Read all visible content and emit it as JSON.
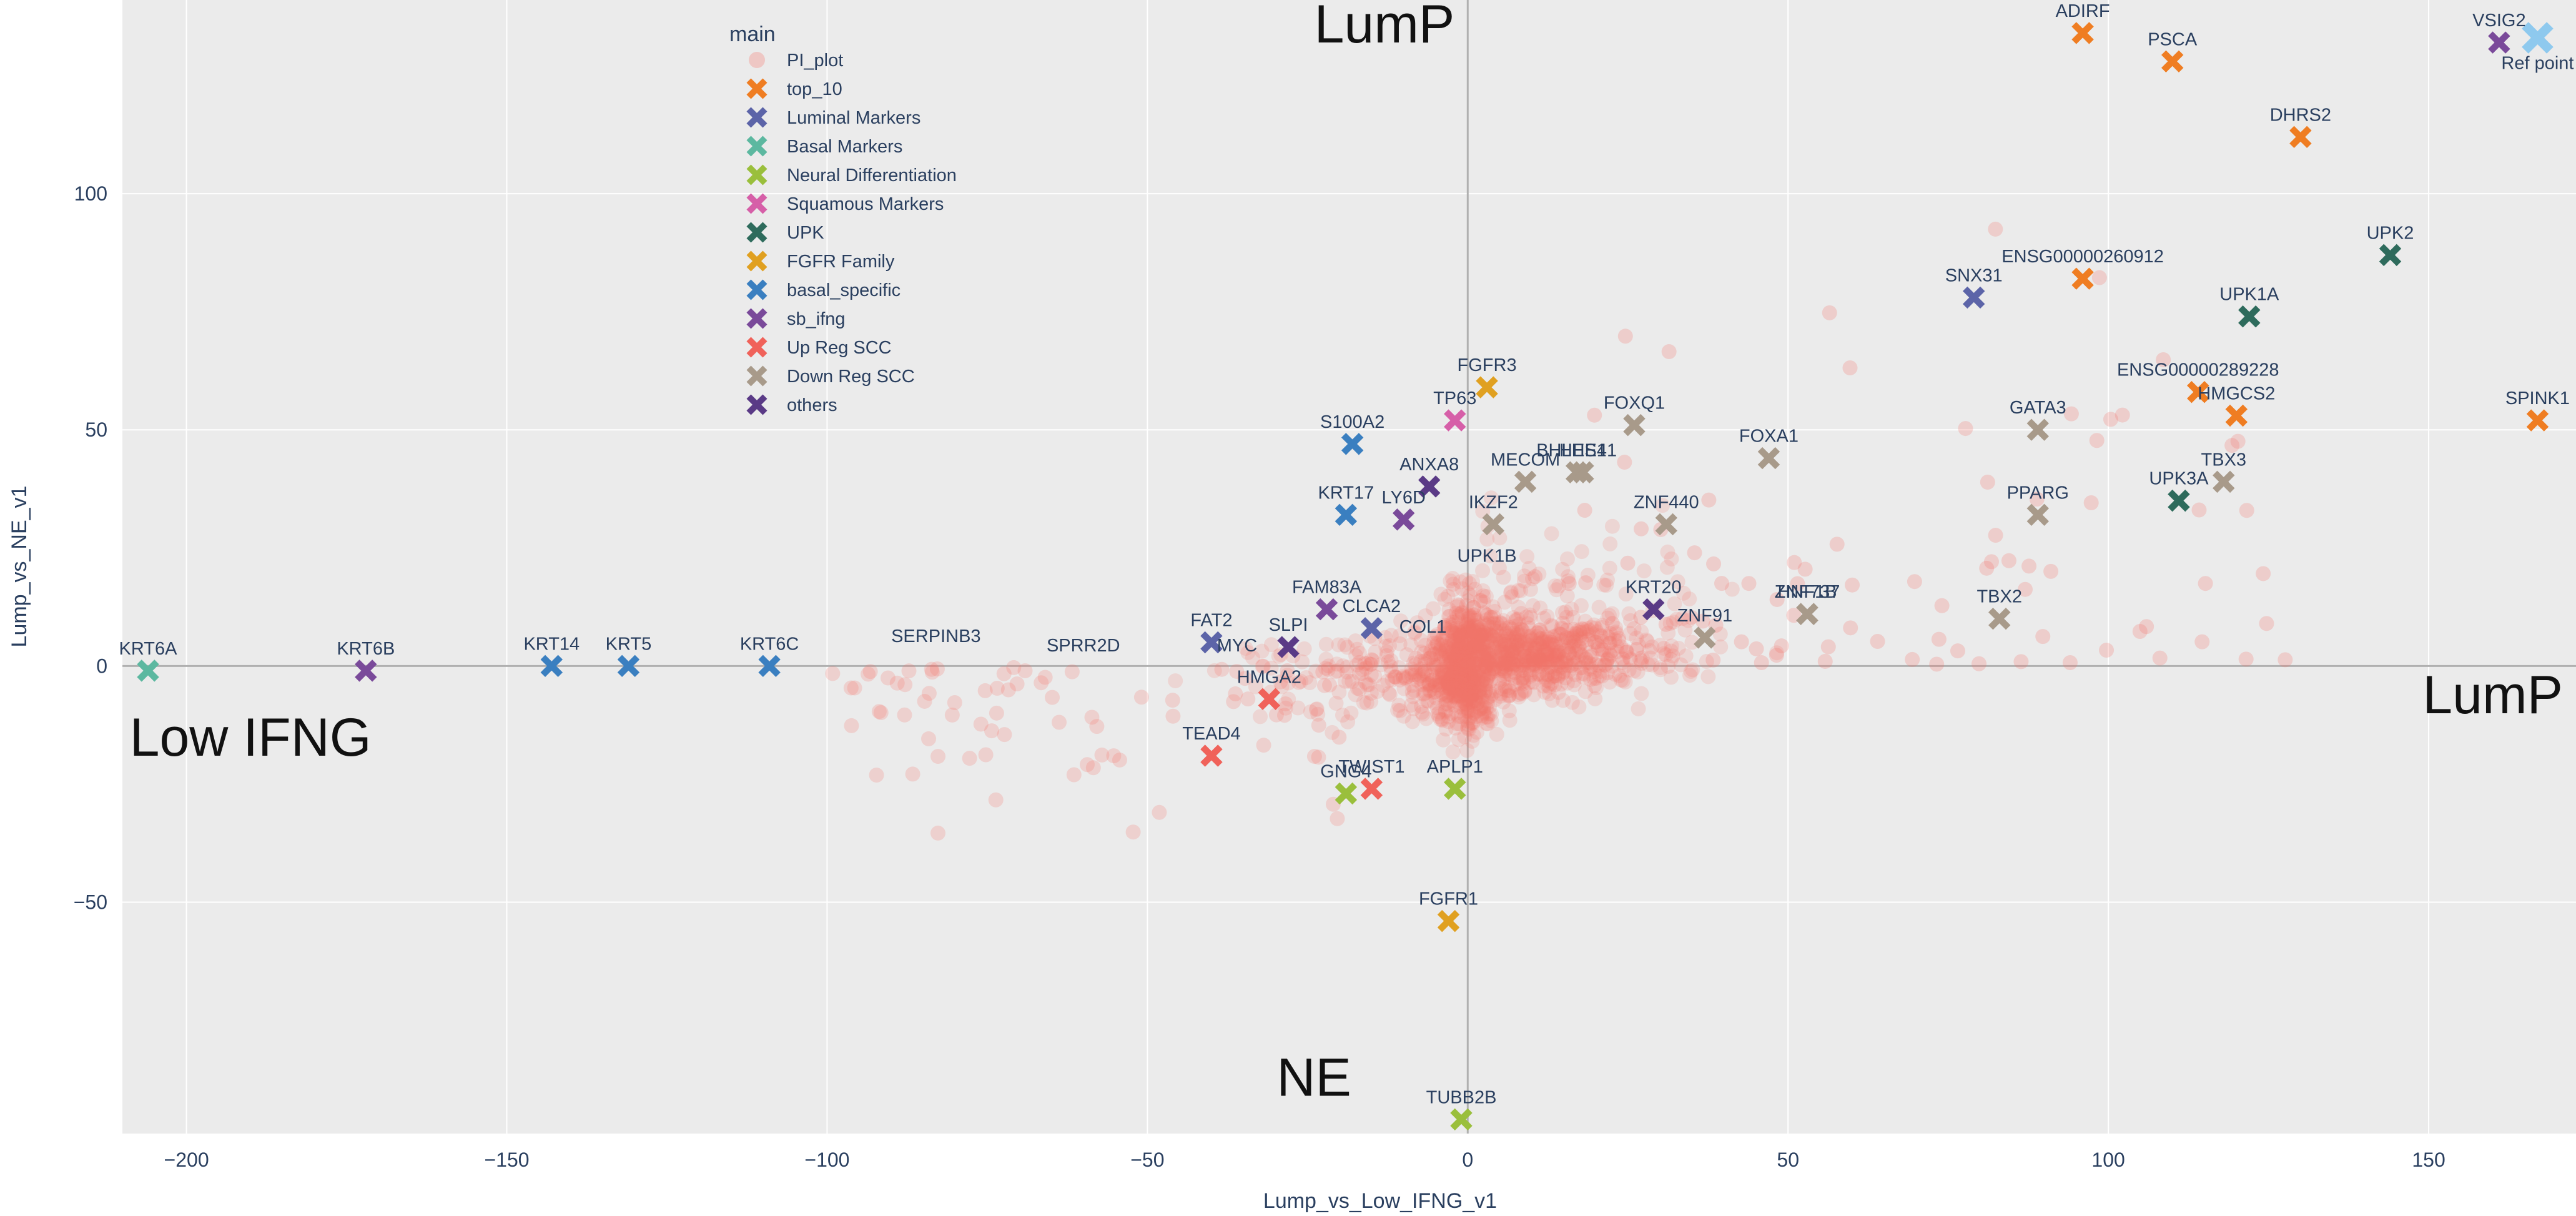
{
  "chart_data": {
    "type": "scatter",
    "xlabel": "Lump_vs_Low_IFNG_v1",
    "ylabel": "Lump_vs_NE_v1",
    "xlim": [
      -210,
      173
    ],
    "ylim": [
      -99,
      141
    ],
    "x_ticks": [
      -200,
      -150,
      -100,
      -50,
      0,
      50,
      100,
      150
    ],
    "y_ticks": [
      -50,
      0,
      50,
      100
    ],
    "grid": true,
    "legend_title": "main",
    "legend_position": "top-left",
    "quadrant_labels": [
      {
        "text": "LumP",
        "x": -13,
        "y": 132
      },
      {
        "text": "LumP",
        "x": 160,
        "y": -10
      },
      {
        "text": "Low IFNG",
        "x": -190,
        "y": -19
      },
      {
        "text": "NE",
        "x": -24,
        "y": -91
      }
    ],
    "series": [
      {
        "name": "PI_plot",
        "color": "#f4736a",
        "marker": "circle",
        "points": []
      },
      {
        "name": "top_10",
        "color": "#ef7d22",
        "marker": "x",
        "points": [
          {
            "label": "ADIRF",
            "x": 96,
            "y": 134
          },
          {
            "label": "PSCA",
            "x": 110,
            "y": 128
          },
          {
            "label": "DHRS2",
            "x": 130,
            "y": 112
          },
          {
            "label": "ENSG00000260912",
            "x": 96,
            "y": 82
          },
          {
            "label": "ENSG00000289228",
            "x": 114,
            "y": 58
          },
          {
            "label": "HMGCS2",
            "x": 120,
            "y": 53
          },
          {
            "label": "SPINK1",
            "x": 167,
            "y": 52
          }
        ]
      },
      {
        "name": "Luminal Markers",
        "color": "#5c64a8",
        "marker": "x",
        "points": [
          {
            "label": "SNX31",
            "x": 79,
            "y": 78
          },
          {
            "label": "CLCA2",
            "x": -15,
            "y": 8
          },
          {
            "label": "FAT2",
            "x": -40,
            "y": 5
          }
        ]
      },
      {
        "name": "Basal Markers",
        "color": "#5cb8a0",
        "marker": "x",
        "points": [
          {
            "label": "KRT6A",
            "x": -206,
            "y": -1
          }
        ]
      },
      {
        "name": "Neural Differentiation",
        "color": "#9abf3c",
        "marker": "x",
        "points": [
          {
            "label": "TUBB2B",
            "x": -1,
            "y": -96
          },
          {
            "label": "GNG4",
            "x": -19,
            "y": -27
          },
          {
            "label": "APLP1",
            "x": -2,
            "y": -26
          }
        ]
      },
      {
        "name": "Squamous Markers",
        "color": "#d65fa8",
        "marker": "x",
        "points": [
          {
            "label": "TP63",
            "x": -2,
            "y": 52
          }
        ]
      },
      {
        "name": "UPK",
        "color": "#2e6b5c",
        "marker": "x",
        "points": [
          {
            "label": "UPK2",
            "x": 144,
            "y": 87
          },
          {
            "label": "UPK1A",
            "x": 122,
            "y": 74
          },
          {
            "label": "UPK3A",
            "x": 111,
            "y": 35
          }
        ]
      },
      {
        "name": "FGFR Family",
        "color": "#e0a020",
        "marker": "x",
        "points": [
          {
            "label": "FGFR3",
            "x": 3,
            "y": 59
          },
          {
            "label": "FGFR1",
            "x": -3,
            "y": -54
          }
        ]
      },
      {
        "name": "basal_specific",
        "color": "#3a7fc0",
        "marker": "x",
        "points": [
          {
            "label": "S100A2",
            "x": -18,
            "y": 47
          },
          {
            "label": "KRT17",
            "x": -19,
            "y": 32
          },
          {
            "label": "KRT14",
            "x": -143,
            "y": 0
          },
          {
            "label": "KRT5",
            "x": -131,
            "y": 0
          },
          {
            "label": "KRT6C",
            "x": -109,
            "y": 0
          }
        ]
      },
      {
        "name": "sb_ifng",
        "color": "#7a4a9a",
        "marker": "x",
        "points": [
          {
            "label": "VSIG2",
            "x": 161,
            "y": 132
          },
          {
            "label": "KRT6B",
            "x": -172,
            "y": -1
          },
          {
            "label": "LY6D",
            "x": -10,
            "y": 31
          },
          {
            "label": "FAM83A",
            "x": -22,
            "y": 12
          }
        ]
      },
      {
        "name": "Up Reg SCC",
        "color": "#f0625a",
        "marker": "x",
        "points": [
          {
            "label": "TEAD4",
            "x": -40,
            "y": -19
          },
          {
            "label": "TWIST1",
            "x": -15,
            "y": -26
          },
          {
            "label": "HMGA2",
            "x": -31,
            "y": -7
          }
        ]
      },
      {
        "name": "Down Reg SCC",
        "color": "#a89a8a",
        "marker": "x",
        "points": [
          {
            "label": "GATA3",
            "x": 89,
            "y": 50
          },
          {
            "label": "PPARG",
            "x": 89,
            "y": 32
          },
          {
            "label": "FOXQ1",
            "x": 26,
            "y": 51
          },
          {
            "label": "FOXA1",
            "x": 47,
            "y": 44
          },
          {
            "label": "TBX3",
            "x": 118,
            "y": 39
          },
          {
            "label": "TBX2",
            "x": 83,
            "y": 10
          },
          {
            "label": "HNF1B",
            "x": 53,
            "y": 11
          },
          {
            "label": "ZNF737",
            "x": 53,
            "y": 11
          },
          {
            "label": "ZNF440",
            "x": 31,
            "y": 30
          },
          {
            "label": "MECOM",
            "x": 9,
            "y": 39
          },
          {
            "label": "BHLHE41",
            "x": 17,
            "y": 41
          },
          {
            "label": "HES1",
            "x": 18,
            "y": 41
          },
          {
            "label": "IKZF2",
            "x": 4,
            "y": 30
          },
          {
            "label": "ZNF91",
            "x": 37,
            "y": 6
          }
        ]
      },
      {
        "name": "others",
        "color": "#5a3a86",
        "marker": "x",
        "points": [
          {
            "label": "ANXA8",
            "x": -6,
            "y": 38
          },
          {
            "label": "KRT20",
            "x": 29,
            "y": 12
          },
          {
            "label": "SLPI",
            "x": -28,
            "y": 4
          }
        ]
      }
    ],
    "reference_point": {
      "label": "Ref point",
      "x": 167,
      "y": 133,
      "color": "#8ec9ee"
    },
    "extra_labels": [
      {
        "label": "UPK1B",
        "x": 3,
        "y": 21
      },
      {
        "label": "COL1",
        "x": -7,
        "y": 6
      },
      {
        "label": "SPRR2D",
        "x": -60,
        "y": 2
      },
      {
        "label": "SERPINB3",
        "x": -83,
        "y": 4
      },
      {
        "label": "MYC",
        "x": -36,
        "y": 2
      }
    ]
  }
}
